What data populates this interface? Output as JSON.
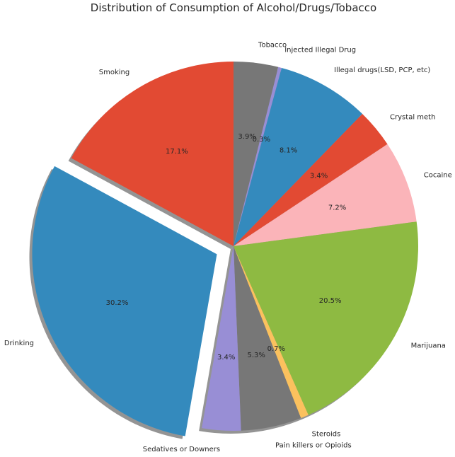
{
  "chart_data": {
    "type": "pie",
    "title": "Distribution of Consumption of Alcohol/Drugs/Tobacco",
    "start_angle_deg": 90,
    "direction": "clockwise",
    "shadow": true,
    "slices": [
      {
        "label": "Tobacco",
        "value": 3.9,
        "pct_label": "3.9%",
        "color": "#777777",
        "explode": 0
      },
      {
        "label": "Injected Illegal Drug",
        "value": 0.3,
        "pct_label": "0.3%",
        "color": "#988ED5",
        "explode": 0
      },
      {
        "label": "Illegal drugs(LSD, PCP, etc)",
        "value": 8.1,
        "pct_label": "8.1%",
        "color": "#348ABD",
        "explode": 0
      },
      {
        "label": "Crystal meth",
        "value": 3.4,
        "pct_label": "3.4%",
        "color": "#E24A33",
        "explode": 0
      },
      {
        "label": "Cocaine",
        "value": 7.2,
        "pct_label": "7.2%",
        "color": "#FBB4B9",
        "explode": 0
      },
      {
        "label": "Marijuana",
        "value": 20.5,
        "pct_label": "20.5%",
        "color": "#8EBA42",
        "explode": 0
      },
      {
        "label": "Steroids",
        "value": 0.7,
        "pct_label": "0.7%",
        "color": "#FBC15E",
        "explode": 0
      },
      {
        "label": "Pain killers or Opioids",
        "value": 5.3,
        "pct_label": "5.3%",
        "color": "#777777",
        "explode": 0
      },
      {
        "label": "Sedatives or Downers",
        "value": 3.4,
        "pct_label": "3.4%",
        "color": "#988ED5",
        "explode": 0
      },
      {
        "label": "Drinking",
        "value": 30.2,
        "pct_label": "30.2%",
        "color": "#348ABD",
        "explode": 0.1
      },
      {
        "label": "Smoking",
        "value": 17.1,
        "pct_label": "17.1%",
        "color": "#E24A33",
        "explode": 0
      }
    ]
  }
}
